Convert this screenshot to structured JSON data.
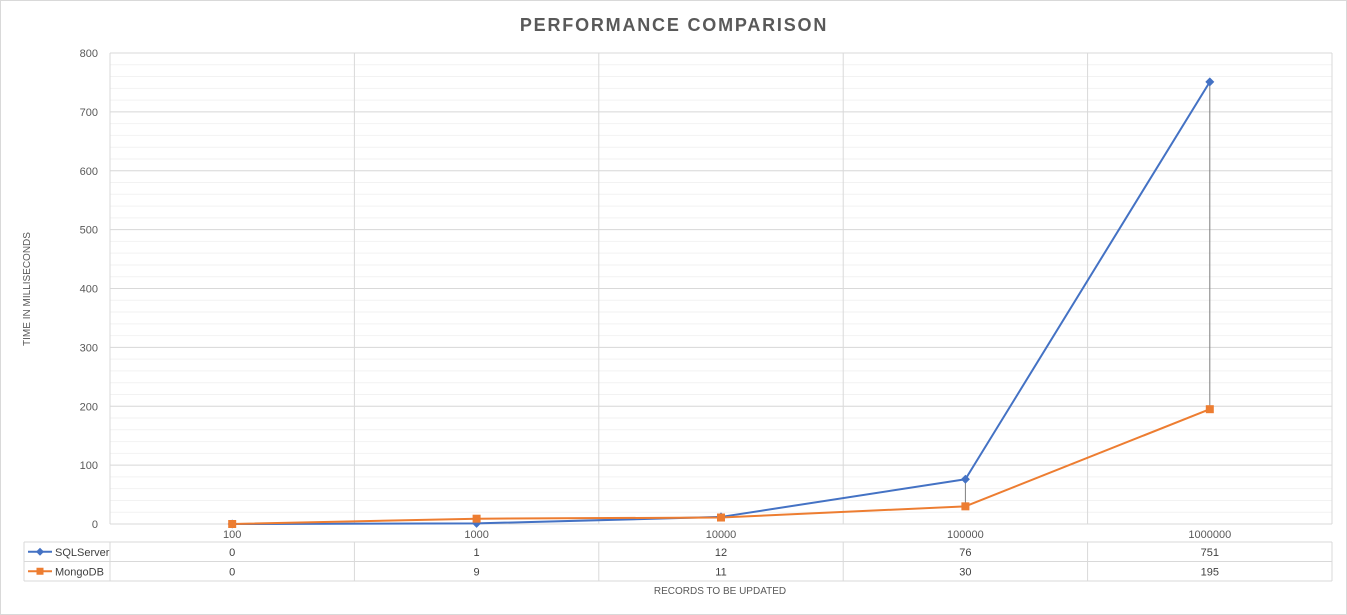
{
  "chart_data": {
    "type": "line",
    "title": "PERFORMANCE COMPARISON",
    "xlabel": "RECORDS TO BE UPDATED",
    "ylabel": "TIME IN MILLISECONDS",
    "categories": [
      "100",
      "1000",
      "10000",
      "100000",
      "1000000"
    ],
    "ylim": [
      0,
      800
    ],
    "yticks": [
      0,
      100,
      200,
      300,
      400,
      500,
      600,
      700,
      800
    ],
    "grid": true,
    "legend": "data-table",
    "series": [
      {
        "name": "SQLServer",
        "values": [
          0,
          1,
          12,
          76,
          751
        ],
        "color": "#4472c4",
        "marker": "diamond"
      },
      {
        "name": "MongoDB",
        "values": [
          0,
          9,
          11,
          30,
          195
        ],
        "color": "#ed7d31",
        "marker": "square"
      }
    ],
    "table_values": [
      [
        "0",
        "1",
        "12",
        "76",
        "751"
      ],
      [
        "0",
        "9",
        "11",
        "30",
        "195"
      ]
    ],
    "high_low_lines": true
  }
}
